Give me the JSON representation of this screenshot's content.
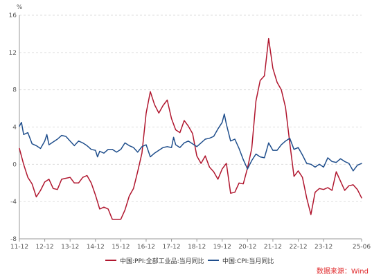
{
  "chart_data": {
    "type": "line",
    "unit_label": "%",
    "ylim": [
      -8,
      16
    ],
    "y_ticks": [
      "-8",
      "-4",
      "0",
      "4",
      "8",
      "12",
      "16"
    ],
    "y_tick_values": [
      -8,
      -4,
      0,
      4,
      8,
      12,
      16
    ],
    "x_range": [
      2011.917,
      2025.417
    ],
    "x_ticks": [
      {
        "label": "11-12",
        "x": 2011.917
      },
      {
        "label": "12-12",
        "x": 2012.917
      },
      {
        "label": "13-12",
        "x": 2013.917
      },
      {
        "label": "14-12",
        "x": 2014.917
      },
      {
        "label": "15-12",
        "x": 2015.917
      },
      {
        "label": "16-12",
        "x": 2016.917
      },
      {
        "label": "17-12",
        "x": 2017.917
      },
      {
        "label": "18-12",
        "x": 2018.917
      },
      {
        "label": "19-12",
        "x": 2019.917
      },
      {
        "label": "20-12",
        "x": 2020.917
      },
      {
        "label": "21-12",
        "x": 2021.917
      },
      {
        "label": "22-12",
        "x": 2022.917
      },
      {
        "label": "23-12",
        "x": 2023.917
      },
      {
        "label": "25-06",
        "x": 2025.417
      }
    ],
    "grid": "horizontal-dashed",
    "legend_position": "bottom",
    "series": [
      {
        "name": "中国:PPI:全部工业品:当月同比",
        "color": "#b0162e",
        "points": [
          [
            2011.917,
            1.7
          ],
          [
            2012.083,
            0.0
          ],
          [
            2012.25,
            -1.4
          ],
          [
            2012.417,
            -2.1
          ],
          [
            2012.583,
            -3.5
          ],
          [
            2012.75,
            -2.8
          ],
          [
            2012.917,
            -1.9
          ],
          [
            2013.083,
            -1.6
          ],
          [
            2013.25,
            -2.6
          ],
          [
            2013.417,
            -2.7
          ],
          [
            2013.583,
            -1.6
          ],
          [
            2013.75,
            -1.5
          ],
          [
            2013.917,
            -1.4
          ],
          [
            2014.083,
            -2.0
          ],
          [
            2014.25,
            -2.0
          ],
          [
            2014.417,
            -1.4
          ],
          [
            2014.583,
            -1.2
          ],
          [
            2014.75,
            -2.0
          ],
          [
            2014.917,
            -3.3
          ],
          [
            2015.083,
            -4.8
          ],
          [
            2015.25,
            -4.6
          ],
          [
            2015.417,
            -4.8
          ],
          [
            2015.583,
            -5.9
          ],
          [
            2015.75,
            -5.9
          ],
          [
            2015.917,
            -5.9
          ],
          [
            2016.083,
            -4.9
          ],
          [
            2016.25,
            -3.4
          ],
          [
            2016.417,
            -2.6
          ],
          [
            2016.583,
            -0.8
          ],
          [
            2016.75,
            1.2
          ],
          [
            2016.917,
            5.5
          ],
          [
            2017.083,
            7.8
          ],
          [
            2017.25,
            6.4
          ],
          [
            2017.417,
            5.5
          ],
          [
            2017.583,
            6.3
          ],
          [
            2017.75,
            6.9
          ],
          [
            2017.917,
            4.9
          ],
          [
            2018.083,
            3.7
          ],
          [
            2018.25,
            3.4
          ],
          [
            2018.417,
            4.7
          ],
          [
            2018.583,
            4.1
          ],
          [
            2018.75,
            3.3
          ],
          [
            2018.917,
            0.9
          ],
          [
            2019.083,
            0.1
          ],
          [
            2019.25,
            0.9
          ],
          [
            2019.417,
            -0.3
          ],
          [
            2019.583,
            -0.8
          ],
          [
            2019.75,
            -1.6
          ],
          [
            2019.917,
            -0.5
          ],
          [
            2020.083,
            0.1
          ],
          [
            2020.25,
            -3.1
          ],
          [
            2020.417,
            -3.0
          ],
          [
            2020.583,
            -2.0
          ],
          [
            2020.75,
            -2.1
          ],
          [
            2020.917,
            -0.4
          ],
          [
            2021.083,
            1.7
          ],
          [
            2021.25,
            6.8
          ],
          [
            2021.417,
            9.0
          ],
          [
            2021.583,
            9.5
          ],
          [
            2021.75,
            13.5
          ],
          [
            2021.917,
            10.3
          ],
          [
            2022.083,
            8.8
          ],
          [
            2022.25,
            8.0
          ],
          [
            2022.417,
            6.1
          ],
          [
            2022.583,
            2.3
          ],
          [
            2022.75,
            -1.3
          ],
          [
            2022.917,
            -0.7
          ],
          [
            2023.083,
            -1.4
          ],
          [
            2023.25,
            -3.6
          ],
          [
            2023.417,
            -5.4
          ],
          [
            2023.583,
            -3.0
          ],
          [
            2023.75,
            -2.6
          ],
          [
            2023.917,
            -2.7
          ],
          [
            2024.083,
            -2.5
          ],
          [
            2024.25,
            -2.8
          ],
          [
            2024.417,
            -0.8
          ],
          [
            2024.583,
            -1.8
          ],
          [
            2024.75,
            -2.8
          ],
          [
            2024.917,
            -2.3
          ],
          [
            2025.083,
            -2.2
          ],
          [
            2025.25,
            -2.7
          ],
          [
            2025.417,
            -3.6
          ]
        ]
      },
      {
        "name": "中国:CPI:当月同比",
        "color": "#1f4e8c",
        "points": [
          [
            2011.917,
            4.1
          ],
          [
            2012.0,
            4.5
          ],
          [
            2012.083,
            3.2
          ],
          [
            2012.25,
            3.4
          ],
          [
            2012.417,
            2.2
          ],
          [
            2012.583,
            2.0
          ],
          [
            2012.75,
            1.7
          ],
          [
            2012.917,
            2.5
          ],
          [
            2013.0,
            3.2
          ],
          [
            2013.083,
            2.1
          ],
          [
            2013.25,
            2.4
          ],
          [
            2013.417,
            2.7
          ],
          [
            2013.583,
            3.1
          ],
          [
            2013.75,
            3.0
          ],
          [
            2013.917,
            2.5
          ],
          [
            2014.083,
            2.0
          ],
          [
            2014.25,
            2.5
          ],
          [
            2014.417,
            2.3
          ],
          [
            2014.583,
            2.0
          ],
          [
            2014.75,
            1.6
          ],
          [
            2014.917,
            1.5
          ],
          [
            2015.0,
            0.8
          ],
          [
            2015.083,
            1.4
          ],
          [
            2015.25,
            1.2
          ],
          [
            2015.417,
            1.6
          ],
          [
            2015.583,
            1.6
          ],
          [
            2015.75,
            1.3
          ],
          [
            2015.917,
            1.6
          ],
          [
            2016.083,
            2.3
          ],
          [
            2016.25,
            2.0
          ],
          [
            2016.417,
            1.8
          ],
          [
            2016.583,
            1.3
          ],
          [
            2016.75,
            1.9
          ],
          [
            2016.917,
            2.1
          ],
          [
            2017.083,
            0.8
          ],
          [
            2017.25,
            1.2
          ],
          [
            2017.417,
            1.5
          ],
          [
            2017.583,
            1.8
          ],
          [
            2017.75,
            1.9
          ],
          [
            2017.917,
            1.8
          ],
          [
            2018.0,
            2.9
          ],
          [
            2018.083,
            2.1
          ],
          [
            2018.25,
            1.8
          ],
          [
            2018.417,
            2.3
          ],
          [
            2018.583,
            2.5
          ],
          [
            2018.75,
            2.2
          ],
          [
            2018.917,
            1.9
          ],
          [
            2019.083,
            2.3
          ],
          [
            2019.25,
            2.7
          ],
          [
            2019.417,
            2.8
          ],
          [
            2019.583,
            3.0
          ],
          [
            2019.75,
            3.8
          ],
          [
            2019.917,
            4.5
          ],
          [
            2020.0,
            5.4
          ],
          [
            2020.083,
            4.3
          ],
          [
            2020.25,
            2.5
          ],
          [
            2020.417,
            2.7
          ],
          [
            2020.583,
            1.7
          ],
          [
            2020.75,
            0.5
          ],
          [
            2020.917,
            -0.5
          ],
          [
            2021.083,
            0.4
          ],
          [
            2021.25,
            1.1
          ],
          [
            2021.417,
            0.8
          ],
          [
            2021.583,
            0.7
          ],
          [
            2021.75,
            2.3
          ],
          [
            2021.917,
            1.5
          ],
          [
            2022.083,
            1.5
          ],
          [
            2022.25,
            2.1
          ],
          [
            2022.417,
            2.5
          ],
          [
            2022.583,
            2.8
          ],
          [
            2022.75,
            1.6
          ],
          [
            2022.917,
            1.8
          ],
          [
            2023.083,
            1.0
          ],
          [
            2023.25,
            0.1
          ],
          [
            2023.417,
            0.0
          ],
          [
            2023.583,
            -0.3
          ],
          [
            2023.75,
            0.0
          ],
          [
            2023.917,
            -0.3
          ],
          [
            2024.083,
            0.7
          ],
          [
            2024.25,
            0.3
          ],
          [
            2024.417,
            0.2
          ],
          [
            2024.583,
            0.6
          ],
          [
            2024.75,
            0.3
          ],
          [
            2024.917,
            0.1
          ],
          [
            2025.083,
            -0.7
          ],
          [
            2025.25,
            -0.1
          ],
          [
            2025.417,
            0.1
          ]
        ]
      }
    ],
    "source_note": "数据来源：Wind"
  },
  "colors": {
    "axis": "#999999",
    "grid": "#dddddd",
    "source": "#e0282a"
  }
}
